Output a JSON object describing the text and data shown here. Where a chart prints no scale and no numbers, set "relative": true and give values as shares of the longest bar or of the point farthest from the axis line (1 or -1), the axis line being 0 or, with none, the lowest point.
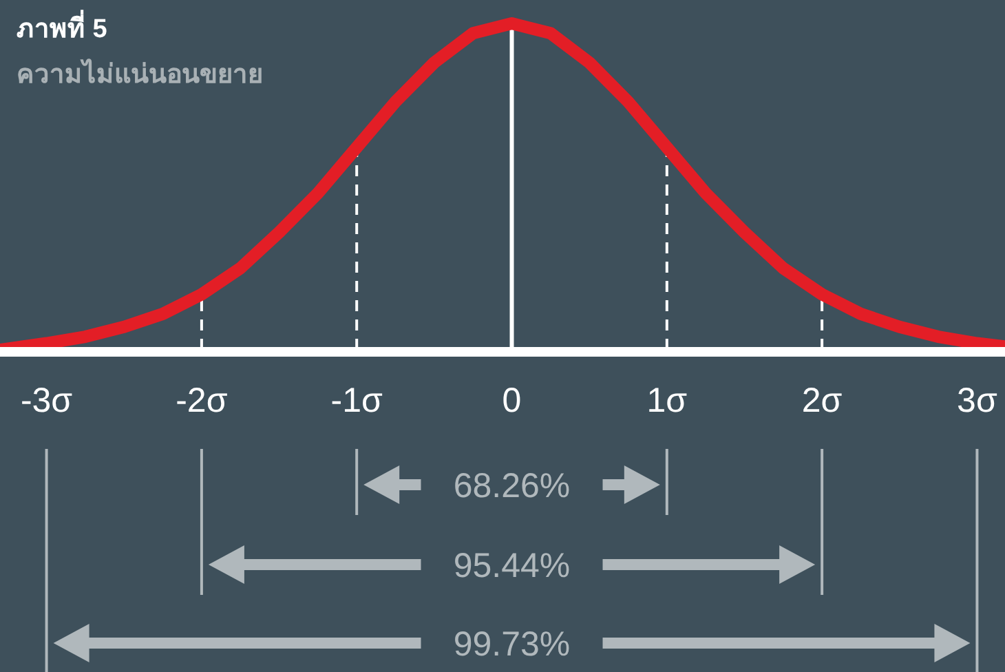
{
  "chart_data": {
    "type": "line",
    "title": "ภาพที่ 5",
    "subtitle": "ความไม่แน่นอนขยาย",
    "x": [
      -3.3,
      -3,
      -2.75,
      -2.5,
      -2.25,
      -2,
      -1.75,
      -1.5,
      -1.25,
      -1,
      -0.75,
      -0.5,
      -0.25,
      0,
      0.25,
      0.5,
      0.75,
      1,
      1.25,
      1.5,
      1.75,
      2,
      2.25,
      2.5,
      2.75,
      3,
      3.18
    ],
    "series": [
      {
        "color": "#e31e26",
        "values": [
          0.0,
          0.02,
          0.04,
          0.07,
          0.11,
          0.17,
          0.25,
          0.36,
          0.48,
          0.62,
          0.76,
          0.88,
          0.97,
          1,
          0.97,
          0.88,
          0.76,
          0.62,
          0.48,
          0.36,
          0.25,
          0.17,
          0.11,
          0.07,
          0.04,
          0.02,
          0.01
        ]
      }
    ],
    "relative": true,
    "xlim": [
      -3.3,
      3.18
    ],
    "xticks": [
      {
        "value": -3,
        "label": "-3σ"
      },
      {
        "value": -2,
        "label": "-2σ"
      },
      {
        "value": -1,
        "label": "-1σ"
      },
      {
        "value": 0,
        "label": "0"
      },
      {
        "value": 1,
        "label": "1σ"
      },
      {
        "value": 2,
        "label": "2σ"
      },
      {
        "value": 3,
        "label": "3σ"
      }
    ],
    "ref_lines": [
      {
        "axis": "x",
        "value": -2,
        "line_style": "dashed",
        "color": "#ffffff"
      },
      {
        "axis": "x",
        "value": -1,
        "line_style": "dashed",
        "color": "#ffffff"
      },
      {
        "axis": "x",
        "value": 0,
        "line_style": "solid",
        "color": "#ffffff"
      },
      {
        "axis": "x",
        "value": 1,
        "line_style": "dashed",
        "color": "#ffffff"
      },
      {
        "axis": "x",
        "value": 2,
        "line_style": "dashed",
        "color": "#ffffff"
      }
    ],
    "annotations": [
      "68.26%",
      "95.44%",
      "99.73%"
    ],
    "line_style": "solid"
  }
}
